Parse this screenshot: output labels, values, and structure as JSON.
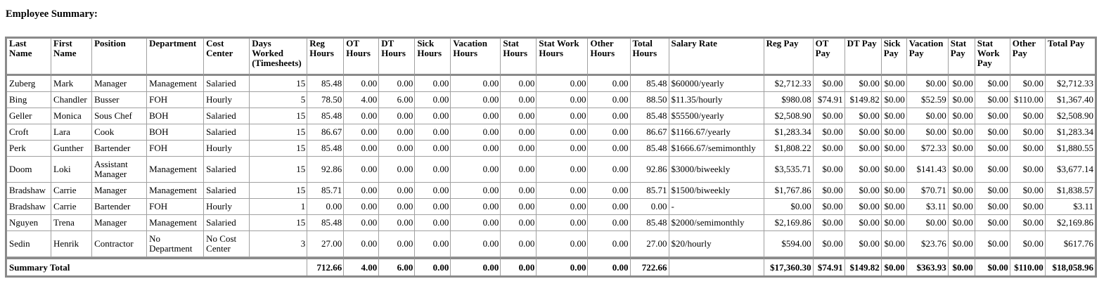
{
  "title": "Employee Summary:",
  "table": {
    "headers": [
      [
        "Last",
        "Name"
      ],
      [
        "First",
        "Name"
      ],
      [
        "Position"
      ],
      [
        "Department"
      ],
      [
        "Cost",
        "Center"
      ],
      [
        "Days",
        "Worked",
        "(Timesheets)"
      ],
      [
        "Reg",
        "Hours"
      ],
      [
        "OT",
        "Hours"
      ],
      [
        "DT",
        "Hours"
      ],
      [
        "Sick",
        "Hours"
      ],
      [
        "Vacation",
        "Hours"
      ],
      [
        "Stat",
        "Hours"
      ],
      [
        "Stat Work",
        "Hours"
      ],
      [
        "Other",
        "Hours"
      ],
      [
        "Total",
        "Hours"
      ],
      [
        "Salary Rate"
      ],
      [
        "Reg Pay"
      ],
      [
        "OT",
        "Pay"
      ],
      [
        "DT Pay"
      ],
      [
        "Sick",
        "Pay"
      ],
      [
        "Vacation",
        "Pay"
      ],
      [
        "Stat",
        "Pay"
      ],
      [
        "Stat",
        "Work",
        "Pay"
      ],
      [
        "Other",
        "Pay"
      ],
      [
        "Total Pay"
      ]
    ],
    "rows": [
      {
        "cells": [
          [
            "Zuberg"
          ],
          [
            "Mark"
          ],
          [
            "Manager"
          ],
          [
            "Management"
          ],
          [
            "Salaried"
          ],
          "15",
          "85.48",
          "0.00",
          "0.00",
          "0.00",
          "0.00",
          "0.00",
          "0.00",
          "0.00",
          "85.48",
          "$60000/yearly",
          "$2,712.33",
          "$0.00",
          "$0.00",
          "$0.00",
          "$0.00",
          "$0.00",
          "$0.00",
          "$0.00",
          "$2,712.33"
        ]
      },
      {
        "cells": [
          [
            "Bing"
          ],
          [
            "Chandler"
          ],
          [
            "Busser"
          ],
          [
            "FOH"
          ],
          [
            "Hourly"
          ],
          "5",
          "78.50",
          "4.00",
          "6.00",
          "0.00",
          "0.00",
          "0.00",
          "0.00",
          "0.00",
          "88.50",
          "$11.35/hourly",
          "$980.08",
          "$74.91",
          "$149.82",
          "$0.00",
          "$52.59",
          "$0.00",
          "$0.00",
          "$110.00",
          "$1,367.40"
        ]
      },
      {
        "cells": [
          [
            "Geller"
          ],
          [
            "Monica"
          ],
          [
            "Sous Chef"
          ],
          [
            "BOH"
          ],
          [
            "Salaried"
          ],
          "15",
          "85.48",
          "0.00",
          "0.00",
          "0.00",
          "0.00",
          "0.00",
          "0.00",
          "0.00",
          "85.48",
          "$55500/yearly",
          "$2,508.90",
          "$0.00",
          "$0.00",
          "$0.00",
          "$0.00",
          "$0.00",
          "$0.00",
          "$0.00",
          "$2,508.90"
        ]
      },
      {
        "cells": [
          [
            "Croft"
          ],
          [
            "Lara"
          ],
          [
            "Cook"
          ],
          [
            "BOH"
          ],
          [
            "Salaried"
          ],
          "15",
          "86.67",
          "0.00",
          "0.00",
          "0.00",
          "0.00",
          "0.00",
          "0.00",
          "0.00",
          "86.67",
          "$1166.67/yearly",
          "$1,283.34",
          "$0.00",
          "$0.00",
          "$0.00",
          "$0.00",
          "$0.00",
          "$0.00",
          "$0.00",
          "$1,283.34"
        ]
      },
      {
        "cells": [
          [
            "Perk"
          ],
          [
            "Gunther"
          ],
          [
            "Bartender"
          ],
          [
            "FOH"
          ],
          [
            "Hourly"
          ],
          "15",
          "85.48",
          "0.00",
          "0.00",
          "0.00",
          "0.00",
          "0.00",
          "0.00",
          "0.00",
          "85.48",
          "$1666.67/semimonthly",
          "$1,808.22",
          "$0.00",
          "$0.00",
          "$0.00",
          "$72.33",
          "$0.00",
          "$0.00",
          "$0.00",
          "$1,880.55"
        ]
      },
      {
        "cells": [
          [
            "Doom"
          ],
          [
            "Loki"
          ],
          [
            "Assistant",
            "Manager"
          ],
          [
            "Management"
          ],
          [
            "Salaried"
          ],
          "15",
          "92.86",
          "0.00",
          "0.00",
          "0.00",
          "0.00",
          "0.00",
          "0.00",
          "0.00",
          "92.86",
          "$3000/biweekly",
          "$3,535.71",
          "$0.00",
          "$0.00",
          "$0.00",
          "$141.43",
          "$0.00",
          "$0.00",
          "$0.00",
          "$3,677.14"
        ]
      },
      {
        "cells": [
          [
            "Bradshaw"
          ],
          [
            "Carrie"
          ],
          [
            "Manager"
          ],
          [
            "Management"
          ],
          [
            "Salaried"
          ],
          "15",
          "85.71",
          "0.00",
          "0.00",
          "0.00",
          "0.00",
          "0.00",
          "0.00",
          "0.00",
          "85.71",
          "$1500/biweekly",
          "$1,767.86",
          "$0.00",
          "$0.00",
          "$0.00",
          "$70.71",
          "$0.00",
          "$0.00",
          "$0.00",
          "$1,838.57"
        ]
      },
      {
        "cells": [
          [
            "Bradshaw"
          ],
          [
            "Carrie"
          ],
          [
            "Bartender"
          ],
          [
            "FOH"
          ],
          [
            "Hourly"
          ],
          "1",
          "0.00",
          "0.00",
          "0.00",
          "0.00",
          "0.00",
          "0.00",
          "0.00",
          "0.00",
          "0.00",
          "-",
          "$0.00",
          "$0.00",
          "$0.00",
          "$0.00",
          "$3.11",
          "$0.00",
          "$0.00",
          "$0.00",
          "$3.11"
        ]
      },
      {
        "cells": [
          [
            "Nguyen"
          ],
          [
            "Trena"
          ],
          [
            "Manager"
          ],
          [
            "Management"
          ],
          [
            "Salaried"
          ],
          "15",
          "85.48",
          "0.00",
          "0.00",
          "0.00",
          "0.00",
          "0.00",
          "0.00",
          "0.00",
          "85.48",
          "$2000/semimonthly",
          "$2,169.86",
          "$0.00",
          "$0.00",
          "$0.00",
          "$0.00",
          "$0.00",
          "$0.00",
          "$0.00",
          "$2,169.86"
        ]
      },
      {
        "cells": [
          [
            "Sedin"
          ],
          [
            "Henrik"
          ],
          [
            "Contractor"
          ],
          [
            "No",
            "Department"
          ],
          [
            "No Cost",
            "Center"
          ],
          "3",
          "27.00",
          "0.00",
          "0.00",
          "0.00",
          "0.00",
          "0.00",
          "0.00",
          "0.00",
          "27.00",
          "$20/hourly",
          "$594.00",
          "$0.00",
          "$0.00",
          "$0.00",
          "$23.76",
          "$0.00",
          "$0.00",
          "$0.00",
          "$617.76"
        ]
      }
    ],
    "totals": {
      "label": "Summary Total",
      "values": [
        "712.66",
        "4.00",
        "6.00",
        "0.00",
        "0.00",
        "0.00",
        "0.00",
        "0.00",
        "722.66",
        "",
        "$17,360.30",
        "$74.91",
        "$149.82",
        "$0.00",
        "$363.93",
        "$0.00",
        "$0.00",
        "$110.00",
        "$18,058.96"
      ]
    }
  }
}
